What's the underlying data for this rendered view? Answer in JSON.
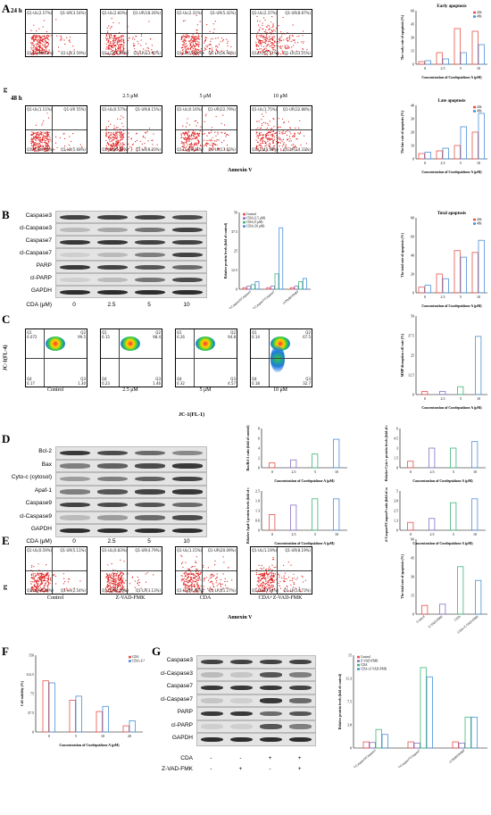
{
  "panelA": {
    "letter": "A",
    "row_24h": "24 h",
    "row_48h": "48 h",
    "y_axis": "PI",
    "x_axis": "Annexin V",
    "lanes": [
      "",
      "2.5 μM",
      "5 μM",
      "10 μM"
    ],
    "quadrants_24h": [
      [
        "Q1-UL(2.57%)",
        "Q1-UR(3.54%)",
        "Q1-LL(90.33%)",
        "Q1-LR(3.59%)"
      ],
      [
        "Q1-UL(2.60%)",
        "Q1-UR(18.26%)",
        "Q1-LL(65.69%)",
        "Q1-LR(13.92%)"
      ],
      [
        "Q1-UL(2.31%)",
        "Q1-UR(5.42%)",
        "Q1-LL(55.68%)",
        "Q1-LR(36.98%)"
      ],
      [
        "Q1-UL(2.37%)",
        "Q1-UR(8.87%)",
        "Q1-LL(37.51%)",
        "Q1-LR(33.25%)"
      ]
    ],
    "quadrants_48h": [
      [
        "Q1-UL(1.11%)",
        "Q1-UR 55%)",
        "Q1-LL(90.45%)",
        "Q1-LR(5.68%)"
      ],
      [
        "Q1-UL(0.57%)",
        "Q1-UR(8.15%)",
        "Q1-LL(85.87%)",
        "Q1-LR(8.20%)"
      ],
      [
        "Q1-UL(0.16%)",
        "Q1-UR(22.79%)",
        "Q1-LL(58.23%)",
        "Q1-LR(13.83%)"
      ],
      [
        "Q1-UL(1.75%)",
        "Q1-UR(32.88%)",
        "Q1-LL(45.52%)",
        "Q1-LR(24.33%)"
      ]
    ]
  },
  "panelB": {
    "letter": "B",
    "blot_labels": [
      "Caspase3",
      "cl-Caspase3",
      "Caspase7",
      "cl-Caspase7",
      "PARP",
      "cl-PARP",
      "GAPDH"
    ],
    "cda_label": "CDA (μM)",
    "lanes": [
      "0",
      "2.5",
      "5",
      "10"
    ]
  },
  "panelC": {
    "letter": "C",
    "y_axis": "JC-1(FL-4)",
    "x_axis": "JC-1(FL-1)",
    "lanes": [
      "Control",
      "2.5 μM",
      "5 μM",
      "10 μM"
    ],
    "quadrants": [
      [
        "Q1",
        "0.072",
        "Q2",
        "99.5",
        "Q4",
        "0.17",
        "Q3",
        "1.30"
      ],
      [
        "Q1",
        "0.15",
        "Q2",
        "98.4",
        "Q4",
        "0.23",
        "Q3",
        "1.46"
      ],
      [
        "Q1",
        "0.26",
        "Q2",
        "94.8",
        "Q4",
        "0.32",
        "Q3",
        "4.57"
      ],
      [
        "Q1",
        "0.14",
        "Q2",
        "67.5",
        "Q4",
        "0.18",
        "Q3",
        "32.7"
      ]
    ]
  },
  "panelD": {
    "letter": "D",
    "blot_labels": [
      "Bcl-2",
      "Bax",
      "Cyto-c (cytosol)",
      "Apaf-1",
      "Caspase9",
      "cl-Caspase9",
      "GAPDH"
    ],
    "cda_label": "CDA (μM)",
    "lanes": [
      "0",
      "2.5",
      "5",
      "10"
    ]
  },
  "panelE": {
    "letter": "E",
    "y_axis": "PI",
    "x_axis": "Annexin V",
    "lanes": [
      "Control",
      "Z-VAD-FMK",
      "CDA",
      "CDA+Z-VAD-FMK"
    ],
    "quadrants": [
      [
        "Q1-UL(0.59%)",
        "Q1-UR(5.11%)",
        "Q1-LL(91.76%)",
        "Q1-LR(2.54%)"
      ],
      [
        "Q1-UL(0.83%)",
        "Q1-UR(4.79%)",
        "Q1-LL(91.26%)",
        "Q1-LR(3.13%)"
      ],
      [
        "Q1-UL(1.15%)",
        "Q1-UR(20.09%)",
        "Q1-LL(57.68%)",
        "Q1-LR(21.27%)"
      ],
      [
        "Q1-UL(1.19%)",
        "Q1-UR(8.19%)",
        "Q1-LL(87.14%)",
        "Q1-LR(14.73%)"
      ]
    ]
  },
  "panelF": {
    "letter": "F"
  },
  "panelG": {
    "letter": "G",
    "blot_labels": [
      "Caspase3",
      "cl-Caspase3",
      "Caspase7",
      "cl-Caspase7",
      "PARP",
      "cl-PARP",
      "GAPDH"
    ],
    "row_cda": "CDA",
    "row_zvad": "Z-VAD-FMK",
    "cda_signs": [
      "-",
      "-",
      "+",
      "+"
    ],
    "zvad_signs": [
      "-",
      "+",
      "-",
      "+"
    ]
  },
  "colors": {
    "red": "#e8524a",
    "blue": "#4a8fd8",
    "green": "#3fb57a",
    "purple": "#8a6fc8",
    "flow_dot": "#e01e1e"
  },
  "chart_data": [
    {
      "id": "early",
      "type": "bar",
      "title": "Early apoptosis",
      "ylabel": "The early rate of apoptosis (%)",
      "xlabel": "Concentration of Curdepsidone A (μM)",
      "categories": [
        "0",
        "2.5",
        "5",
        "10"
      ],
      "ylim": [
        0,
        60
      ],
      "series": [
        {
          "name": "24h",
          "values": [
            3,
            13,
            40,
            37
          ]
        },
        {
          "name": "48h",
          "values": [
            4,
            6,
            13,
            22
          ]
        }
      ]
    },
    {
      "id": "late",
      "type": "bar",
      "title": "Late apoptosis",
      "ylabel": "The late rate of apoptosis (%)",
      "xlabel": "Concentration of Curdepsidone A (μM)",
      "categories": [
        "0",
        "2.5",
        "5",
        "10"
      ],
      "ylim": [
        0,
        40
      ],
      "series": [
        {
          "name": "24h",
          "values": [
            4,
            6,
            10,
            20
          ]
        },
        {
          "name": "48h",
          "values": [
            5,
            8,
            24,
            34
          ]
        }
      ]
    },
    {
      "id": "protB",
      "type": "bar",
      "ylabel": "Relative protein levels (fold of control)",
      "categories": [
        "cl-Caspase3/Caspase3",
        "cl-Caspase7/Caspase7",
        "cl-PARP/PARP"
      ],
      "ylim": [
        0,
        50
      ],
      "series": [
        {
          "name": "Control",
          "values": [
            1,
            1,
            1
          ]
        },
        {
          "name": "CDA (2.5 μM)",
          "values": [
            2,
            2,
            2
          ]
        },
        {
          "name": "CDA (5 μM)",
          "values": [
            3,
            10,
            5
          ]
        },
        {
          "name": "CDA (10 μM)",
          "values": [
            5,
            40,
            7
          ]
        }
      ]
    },
    {
      "id": "total",
      "type": "bar",
      "title": "Total apoptosis",
      "ylabel": "The total rate of apoptosis (%)",
      "xlabel": "Concentration of Curdepsidone A (μM)",
      "categories": [
        "0",
        "2.5",
        "5",
        "10"
      ],
      "ylim": [
        0,
        80
      ],
      "series": [
        {
          "name": "24h",
          "values": [
            6,
            20,
            45,
            43
          ]
        },
        {
          "name": "48h",
          "values": [
            8,
            15,
            38,
            56
          ]
        }
      ]
    },
    {
      "id": "mmp",
      "type": "bar",
      "ylabel": "MMP disruption cell rate (%)",
      "xlabel": "Concentration of Curdepsidone A (μM)",
      "categories": [
        "0",
        "2.5",
        "5",
        "10"
      ],
      "ylim": [
        0,
        50
      ],
      "values": [
        2,
        2,
        5,
        37
      ]
    },
    {
      "id": "baxbcl",
      "type": "bar",
      "ylabel": "Bax/Bcl-2 ratio (fold of control)",
      "xlabel": "Concentration of Curdepsidone A (μM)",
      "categories": [
        "0",
        "2.5",
        "5",
        "10"
      ],
      "ylim": [
        0,
        8
      ],
      "values": [
        1,
        1.6,
        2.8,
        5.8
      ]
    },
    {
      "id": "cytoc",
      "type": "bar",
      "ylabel": "Relative Cyto-c protein levels (fold of control)",
      "xlabel": "Concentration of Curdepsidone A (μM)",
      "categories": [
        "0",
        "2.5",
        "5",
        "10"
      ],
      "ylim": [
        0,
        6
      ],
      "values": [
        1,
        3,
        3,
        4
      ]
    },
    {
      "id": "apaf",
      "type": "bar",
      "ylabel": "Relative Apaf-1 protein levels (fold of control)",
      "xlabel": "Concentration of Curdepsidone A (μM)",
      "categories": [
        "0",
        "2.5",
        "5",
        "10"
      ],
      "ylim": [
        0,
        2.5
      ],
      "values": [
        1,
        1.6,
        2,
        2
      ]
    },
    {
      "id": "clcasp9",
      "type": "bar",
      "ylabel": "cl-Caspase9/Caspase9 ratio (fold of control)",
      "xlabel": "Concentration of Curdepsidone A (μM)",
      "categories": [
        "0",
        "2.5",
        "5",
        "10"
      ],
      "ylim": [
        0,
        5
      ],
      "values": [
        1,
        1.5,
        3.5,
        4
      ]
    },
    {
      "id": "totalE",
      "type": "bar",
      "ylabel": "The total rate of apoptosis (%)",
      "categories": [
        "Control",
        "Z-VAD-FMK",
        "CDA",
        "CDA+Z-VAD-FMK"
      ],
      "ylim": [
        0,
        60
      ],
      "values": [
        7,
        8,
        38,
        27
      ]
    },
    {
      "id": "viab",
      "type": "bar",
      "ylabel": "Cell viability (%)",
      "xlabel": "Concentration of Curdepsidone A (μM)",
      "categories": [
        "0",
        "5",
        "10",
        "20"
      ],
      "ylim": [
        0,
        150
      ],
      "series": [
        {
          "name": "CDA",
          "values": [
            100,
            62,
            40,
            12
          ]
        },
        {
          "name": "CDA+Z-VAD-FMK",
          "values": [
            96,
            70,
            50,
            22
          ]
        }
      ]
    },
    {
      "id": "protG",
      "type": "bar",
      "ylabel": "Relative protein levels (fold of control)",
      "categories": [
        "cl-Caspase3/Caspase3",
        "cl-Caspase7/Caspase7",
        "cl-PARP/PARP"
      ],
      "ylim": [
        0,
        15
      ],
      "series": [
        {
          "name": "Control",
          "values": [
            1,
            1,
            1
          ]
        },
        {
          "name": "Z-VAD-FMK",
          "values": [
            0.9,
            0.8,
            0.8
          ]
        },
        {
          "name": "CDA",
          "values": [
            3,
            13,
            5
          ]
        },
        {
          "name": "CDA+Z-VAD-FMK",
          "values": [
            2.2,
            11.5,
            5
          ]
        }
      ]
    }
  ]
}
